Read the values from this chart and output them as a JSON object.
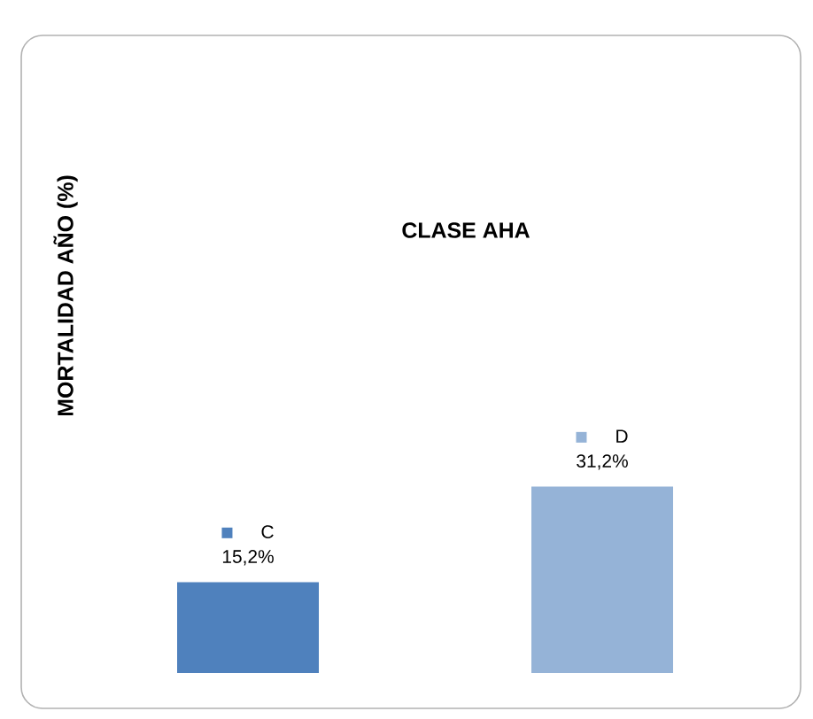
{
  "chart_data": {
    "type": "bar",
    "title": "CLASE AHA",
    "ylabel": "MORTALIDAD AÑO (%)",
    "categories": [
      "C",
      "D"
    ],
    "values": [
      15.2,
      31.2
    ],
    "value_labels": [
      "15,2%",
      "31,2%"
    ],
    "colors": [
      "#4f81bd",
      "#95b3d7"
    ]
  }
}
